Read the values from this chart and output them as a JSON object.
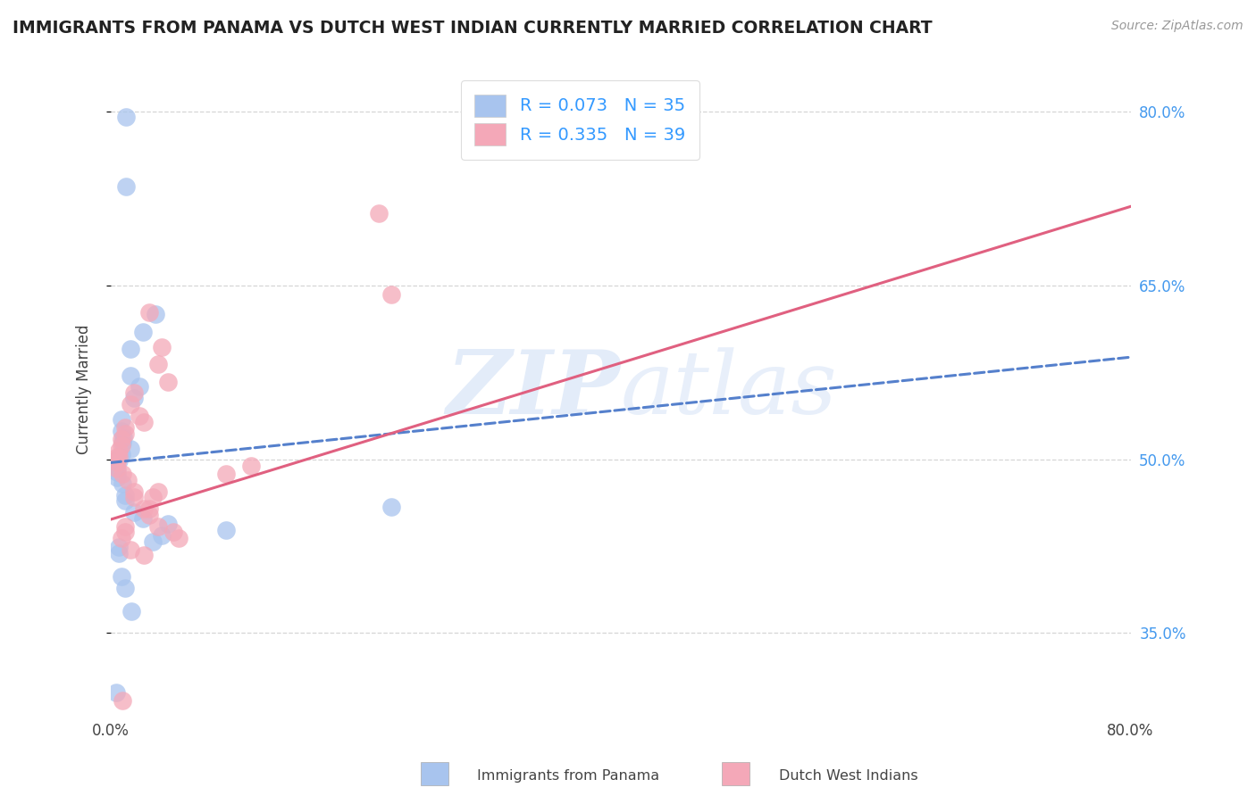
{
  "title": "IMMIGRANTS FROM PANAMA VS DUTCH WEST INDIAN CURRENTLY MARRIED CORRELATION CHART",
  "source_text": "Source: ZipAtlas.com",
  "ylabel": "Currently Married",
  "watermark_zip": "ZIP",
  "watermark_atlas": "atlas",
  "xlim": [
    0.0,
    0.8
  ],
  "ylim": [
    0.28,
    0.84
  ],
  "yticks": [
    0.35,
    0.5,
    0.65,
    0.8
  ],
  "ytick_labels": [
    "35.0%",
    "50.0%",
    "65.0%",
    "80.0%"
  ],
  "legend_blue_label": "R = 0.073   N = 35",
  "legend_pink_label": "R = 0.335   N = 39",
  "blue_color": "#a8c4ee",
  "pink_color": "#f4a8b8",
  "trend_blue_color": "#5580cc",
  "trend_pink_color": "#e06080",
  "background_color": "#ffffff",
  "grid_color": "#cccccc",
  "series1_label": "Immigrants from Panama",
  "series2_label": "Dutch West Indians",
  "blue_trend_x": [
    0.0,
    0.8
  ],
  "blue_trend_y": [
    0.497,
    0.588
  ],
  "pink_trend_x": [
    0.0,
    0.8
  ],
  "pink_trend_y": [
    0.448,
    0.718
  ],
  "blue_x": [
    0.012,
    0.012,
    0.035,
    0.025,
    0.015,
    0.015,
    0.022,
    0.018,
    0.008,
    0.008,
    0.01,
    0.009,
    0.015,
    0.008,
    0.006,
    0.004,
    0.004,
    0.005,
    0.005,
    0.009,
    0.011,
    0.011,
    0.018,
    0.025,
    0.045,
    0.09,
    0.04,
    0.033,
    0.006,
    0.006,
    0.008,
    0.011,
    0.016,
    0.22,
    0.004
  ],
  "blue_y": [
    0.795,
    0.735,
    0.625,
    0.61,
    0.595,
    0.572,
    0.563,
    0.553,
    0.534,
    0.524,
    0.519,
    0.514,
    0.509,
    0.504,
    0.499,
    0.499,
    0.494,
    0.489,
    0.484,
    0.479,
    0.469,
    0.464,
    0.454,
    0.449,
    0.444,
    0.439,
    0.434,
    0.429,
    0.424,
    0.419,
    0.399,
    0.389,
    0.369,
    0.459,
    0.299
  ],
  "pink_x": [
    0.03,
    0.04,
    0.037,
    0.045,
    0.018,
    0.015,
    0.022,
    0.026,
    0.011,
    0.011,
    0.008,
    0.008,
    0.006,
    0.006,
    0.005,
    0.005,
    0.005,
    0.009,
    0.013,
    0.018,
    0.018,
    0.026,
    0.03,
    0.037,
    0.049,
    0.053,
    0.22,
    0.11,
    0.09,
    0.037,
    0.033,
    0.03,
    0.011,
    0.011,
    0.008,
    0.009,
    0.015,
    0.026,
    0.21
  ],
  "pink_y": [
    0.627,
    0.597,
    0.582,
    0.567,
    0.557,
    0.547,
    0.537,
    0.532,
    0.527,
    0.522,
    0.517,
    0.512,
    0.507,
    0.502,
    0.502,
    0.497,
    0.492,
    0.487,
    0.482,
    0.472,
    0.467,
    0.457,
    0.452,
    0.442,
    0.437,
    0.432,
    0.642,
    0.494,
    0.487,
    0.472,
    0.467,
    0.457,
    0.442,
    0.437,
    0.432,
    0.292,
    0.422,
    0.417,
    0.712
  ]
}
